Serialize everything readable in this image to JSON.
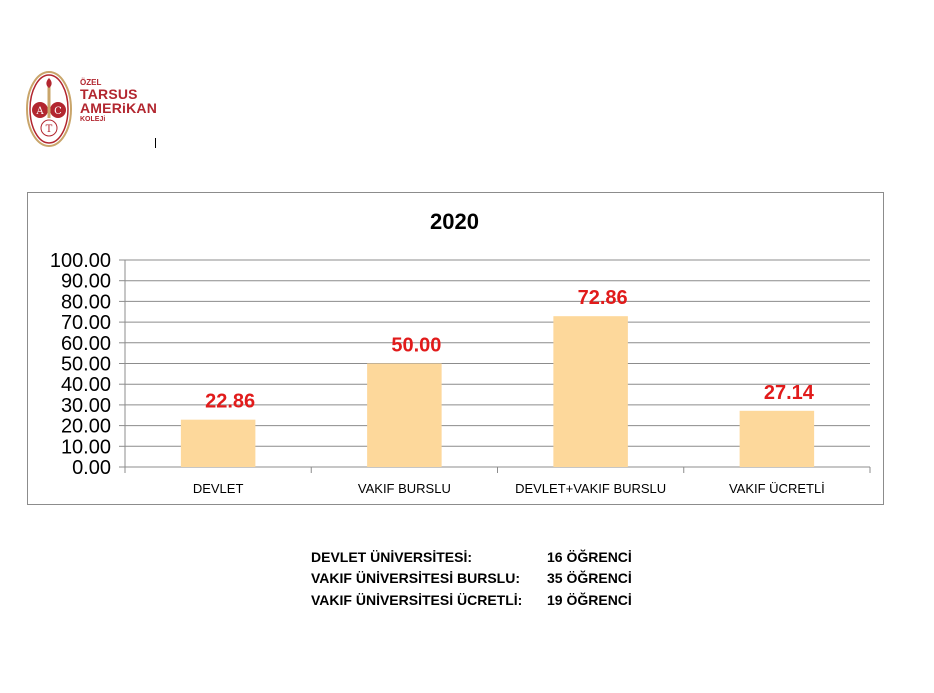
{
  "logo": {
    "line1": "ÖZEL",
    "line2": "TARSUS",
    "line3": "AMERiKAN",
    "line4": "KOLEJi",
    "letters": [
      "A",
      "C",
      "T"
    ],
    "color": "#b2262f"
  },
  "chart_data": {
    "type": "bar",
    "title": "2020",
    "categories": [
      "DEVLET",
      "VAKIF BURSLU",
      "DEVLET+VAKIF BURSLU",
      "VAKIF ÜCRETLİ"
    ],
    "values": [
      22.86,
      50.0,
      72.86,
      27.14
    ],
    "value_labels": [
      "22.86",
      "50.00",
      "72.86",
      "27.14"
    ],
    "yticks": [
      "0.00",
      "10.00",
      "20.00",
      "30.00",
      "40.00",
      "50.00",
      "60.00",
      "70.00",
      "80.00",
      "90.00",
      "100.00"
    ],
    "ylim": [
      0,
      100
    ],
    "xlabel": "",
    "ylabel": "",
    "grid": true,
    "legend": "none",
    "bar_color": "#fdd89b",
    "label_color": "#e11b1b"
  },
  "summary": [
    {
      "label": "DEVLET ÜNİVERSİTESİ:",
      "value": "16 ÖĞRENCİ"
    },
    {
      "label": "VAKIF ÜNİVERSİTESİ BURSLU:",
      "value": "35 ÖĞRENCİ"
    },
    {
      "label": "VAKIF ÜNİVERSİTESİ ÜCRETLİ:",
      "value": "19 ÖĞRENCİ"
    }
  ]
}
